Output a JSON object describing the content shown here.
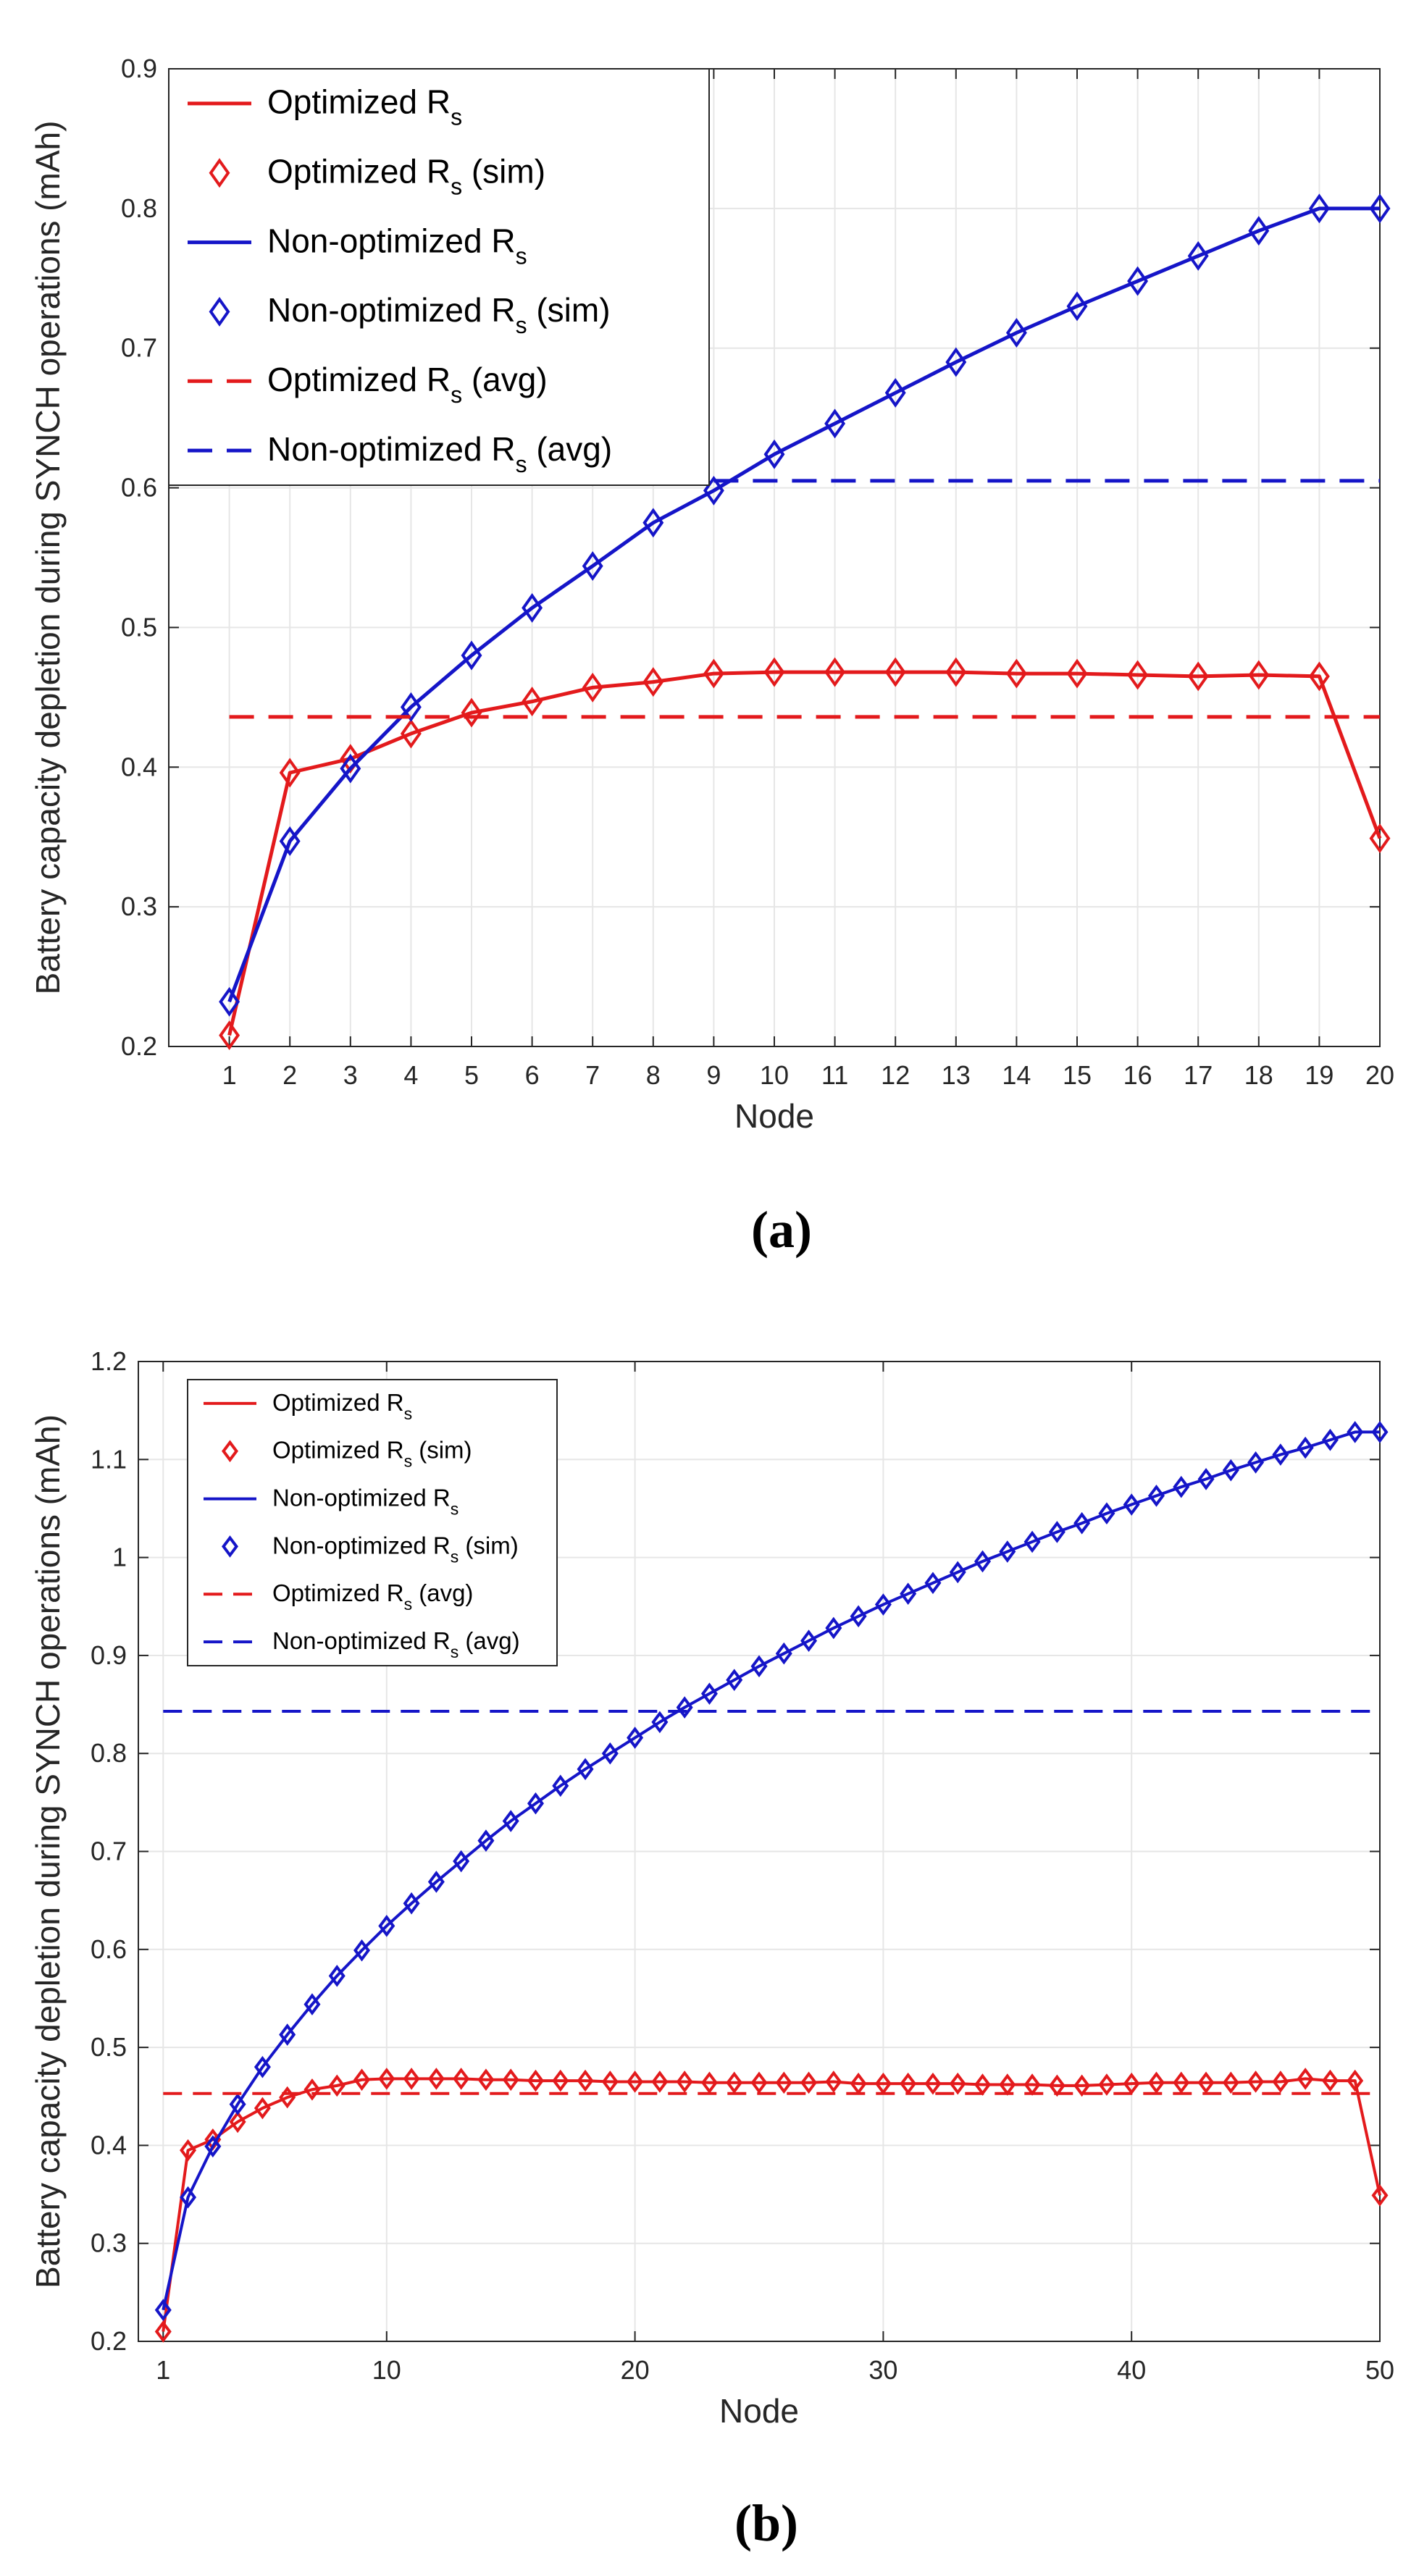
{
  "chart_data": [
    {
      "type": "line",
      "caption": "(a)",
      "xlabel": "Node",
      "ylabel": "Battery capacity depletion during SYNCH operations (mAh)",
      "xlim": [
        0,
        20
      ],
      "ylim": [
        0.2,
        0.9
      ],
      "xticks": [
        1,
        2,
        3,
        4,
        5,
        6,
        7,
        8,
        9,
        10,
        11,
        12,
        13,
        14,
        15,
        16,
        17,
        18,
        19,
        20
      ],
      "yticks": [
        0.2,
        0.3,
        0.4,
        0.5,
        0.6,
        0.7,
        0.8,
        0.9
      ],
      "ytick_labels": [
        "0.2",
        "0.3",
        "0.4",
        "0.5",
        "0.6",
        "0.7",
        "0.8",
        "0.9"
      ],
      "grid": true,
      "legend_position": "top-left",
      "x": [
        1,
        2,
        3,
        4,
        5,
        6,
        7,
        8,
        9,
        10,
        11,
        12,
        13,
        14,
        15,
        16,
        17,
        18,
        19,
        20
      ],
      "series": [
        {
          "name": "Optimized R",
          "subscript": "s",
          "suffix": "",
          "style": "solid",
          "color": "#e31a1c",
          "values": [
            0.208,
            0.396,
            0.406,
            0.424,
            0.439,
            0.447,
            0.457,
            0.461,
            0.467,
            0.468,
            0.468,
            0.468,
            0.468,
            0.467,
            0.467,
            0.466,
            0.465,
            0.466,
            0.465,
            0.349
          ]
        },
        {
          "name": "Optimized R",
          "subscript": "s",
          "suffix": " (sim)",
          "style": "marker",
          "color": "#e31a1c",
          "values": [
            0.208,
            0.396,
            0.406,
            0.424,
            0.439,
            0.447,
            0.457,
            0.461,
            0.467,
            0.468,
            0.468,
            0.468,
            0.468,
            0.467,
            0.467,
            0.466,
            0.465,
            0.466,
            0.465,
            0.349
          ]
        },
        {
          "name": "Non-optimized R",
          "subscript": "s",
          "suffix": "",
          "style": "solid",
          "color": "#1515c8",
          "values": [
            0.232,
            0.347,
            0.399,
            0.443,
            0.48,
            0.514,
            0.544,
            0.575,
            0.598,
            0.624,
            0.646,
            0.668,
            0.69,
            0.711,
            0.73,
            0.748,
            0.766,
            0.784,
            0.8,
            0.8
          ]
        },
        {
          "name": "Non-optimized R",
          "subscript": "s",
          "suffix": " (sim)",
          "style": "marker",
          "color": "#1515c8",
          "values": [
            0.232,
            0.347,
            0.399,
            0.443,
            0.48,
            0.514,
            0.544,
            0.575,
            0.598,
            0.624,
            0.646,
            0.668,
            0.69,
            0.711,
            0.73,
            0.748,
            0.766,
            0.784,
            0.8,
            0.8
          ]
        },
        {
          "name": "Optimized R",
          "subscript": "s",
          "suffix": " (avg)",
          "style": "dashed",
          "color": "#e31a1c",
          "x_range": [
            1,
            20
          ],
          "value": 0.436
        },
        {
          "name": "Non-optimized R",
          "subscript": "s",
          "suffix": " (avg)",
          "style": "dashed",
          "color": "#1515c8",
          "x_range": [
            9,
            20
          ],
          "value": 0.605
        }
      ]
    },
    {
      "type": "line",
      "caption": "(b)",
      "xlabel": "Node",
      "ylabel": "Battery capacity depletion during SYNCH operations (mAh)",
      "xlim": [
        0,
        50
      ],
      "ylim": [
        0.2,
        1.2
      ],
      "xticks": [
        1,
        10,
        20,
        30,
        40,
        50
      ],
      "yticks": [
        0.2,
        0.3,
        0.4,
        0.5,
        0.6,
        0.7,
        0.8,
        0.9,
        1.0,
        1.1,
        1.2
      ],
      "ytick_labels": [
        "0.2",
        "0.3",
        "0.4",
        "0.5",
        "0.6",
        "0.7",
        "0.8",
        "0.9",
        "1",
        "1.1",
        "1.2"
      ],
      "grid": true,
      "legend_position": "top-left",
      "x": [
        1,
        2,
        3,
        4,
        5,
        6,
        7,
        8,
        9,
        10,
        11,
        12,
        13,
        14,
        15,
        16,
        17,
        18,
        19,
        20,
        21,
        22,
        23,
        24,
        25,
        26,
        27,
        28,
        29,
        30,
        31,
        32,
        33,
        34,
        35,
        36,
        37,
        38,
        39,
        40,
        41,
        42,
        43,
        44,
        45,
        46,
        47,
        48,
        49,
        50
      ],
      "series": [
        {
          "name": "Optimized R",
          "subscript": "s",
          "suffix": "",
          "style": "solid",
          "color": "#e31a1c",
          "values": [
            0.21,
            0.395,
            0.406,
            0.424,
            0.438,
            0.449,
            0.457,
            0.461,
            0.467,
            0.468,
            0.468,
            0.468,
            0.468,
            0.467,
            0.467,
            0.466,
            0.466,
            0.466,
            0.465,
            0.465,
            0.465,
            0.465,
            0.464,
            0.464,
            0.464,
            0.464,
            0.464,
            0.465,
            0.463,
            0.463,
            0.463,
            0.463,
            0.463,
            0.462,
            0.462,
            0.462,
            0.461,
            0.461,
            0.462,
            0.463,
            0.464,
            0.464,
            0.464,
            0.464,
            0.465,
            0.465,
            0.468,
            0.466,
            0.466,
            0.349
          ]
        },
        {
          "name": "Optimized R",
          "subscript": "s",
          "suffix": " (sim)",
          "style": "marker",
          "color": "#e31a1c",
          "values": [
            0.21,
            0.395,
            0.406,
            0.424,
            0.438,
            0.449,
            0.457,
            0.461,
            0.467,
            0.468,
            0.468,
            0.468,
            0.468,
            0.467,
            0.467,
            0.466,
            0.466,
            0.466,
            0.465,
            0.465,
            0.465,
            0.465,
            0.464,
            0.464,
            0.464,
            0.464,
            0.464,
            0.465,
            0.463,
            0.463,
            0.463,
            0.463,
            0.463,
            0.462,
            0.462,
            0.462,
            0.461,
            0.461,
            0.462,
            0.463,
            0.464,
            0.464,
            0.464,
            0.464,
            0.465,
            0.465,
            0.468,
            0.466,
            0.466,
            0.349
          ]
        },
        {
          "name": "Non-optimized R",
          "subscript": "s",
          "suffix": "",
          "style": "solid",
          "color": "#1515c8",
          "values": [
            0.232,
            0.347,
            0.399,
            0.442,
            0.48,
            0.513,
            0.544,
            0.573,
            0.599,
            0.624,
            0.647,
            0.669,
            0.69,
            0.711,
            0.731,
            0.749,
            0.767,
            0.784,
            0.8,
            0.816,
            0.832,
            0.847,
            0.861,
            0.875,
            0.889,
            0.902,
            0.915,
            0.928,
            0.94,
            0.952,
            0.963,
            0.974,
            0.985,
            0.996,
            1.006,
            1.016,
            1.026,
            1.035,
            1.045,
            1.054,
            1.063,
            1.072,
            1.08,
            1.089,
            1.097,
            1.105,
            1.112,
            1.12,
            1.128,
            1.128
          ]
        },
        {
          "name": "Non-optimized R",
          "subscript": "s",
          "suffix": " (sim)",
          "style": "marker",
          "color": "#1515c8",
          "values": [
            0.232,
            0.347,
            0.399,
            0.442,
            0.48,
            0.513,
            0.544,
            0.573,
            0.599,
            0.624,
            0.647,
            0.669,
            0.69,
            0.711,
            0.731,
            0.749,
            0.767,
            0.784,
            0.8,
            0.816,
            0.832,
            0.847,
            0.861,
            0.875,
            0.889,
            0.902,
            0.915,
            0.928,
            0.94,
            0.952,
            0.963,
            0.974,
            0.985,
            0.996,
            1.006,
            1.016,
            1.026,
            1.035,
            1.045,
            1.054,
            1.063,
            1.072,
            1.08,
            1.089,
            1.097,
            1.105,
            1.112,
            1.12,
            1.128,
            1.128
          ]
        },
        {
          "name": "Optimized R",
          "subscript": "s",
          "suffix": " (avg)",
          "style": "dashed",
          "color": "#e31a1c",
          "x_range": [
            1,
            50
          ],
          "value": 0.453
        },
        {
          "name": "Non-optimized R",
          "subscript": "s",
          "suffix": " (avg)",
          "style": "dashed",
          "color": "#1515c8",
          "x_range": [
            1,
            50
          ],
          "value": 0.843
        }
      ]
    }
  ]
}
